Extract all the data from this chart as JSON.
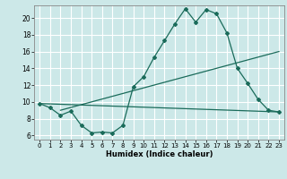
{
  "xlabel": "Humidex (Indice chaleur)",
  "bg_color": "#cce8e8",
  "grid_color": "#ffffff",
  "line_color": "#1a6b5a",
  "xlim": [
    -0.5,
    23.5
  ],
  "ylim": [
    5.5,
    21.5
  ],
  "xticks": [
    0,
    1,
    2,
    3,
    4,
    5,
    6,
    7,
    8,
    9,
    10,
    11,
    12,
    13,
    14,
    15,
    16,
    17,
    18,
    19,
    20,
    21,
    22,
    23
  ],
  "yticks": [
    6,
    8,
    10,
    12,
    14,
    16,
    18,
    20
  ],
  "curve1_x": [
    0,
    1,
    2,
    3,
    4,
    5,
    6,
    7,
    8,
    9,
    10,
    11,
    12,
    13,
    14,
    15,
    16,
    17,
    18,
    19,
    20,
    21,
    22,
    23
  ],
  "curve1_y": [
    9.8,
    9.3,
    8.4,
    8.9,
    7.2,
    6.3,
    6.4,
    6.3,
    7.2,
    11.8,
    13.0,
    15.3,
    17.3,
    19.3,
    21.1,
    19.5,
    21.0,
    20.5,
    18.2,
    14.0,
    12.2,
    10.3,
    9.0,
    8.8
  ],
  "line2_x": [
    0,
    23
  ],
  "line2_y": [
    9.8,
    8.8
  ],
  "line3_x": [
    2,
    23
  ],
  "line3_y": [
    9.0,
    16.0
  ]
}
